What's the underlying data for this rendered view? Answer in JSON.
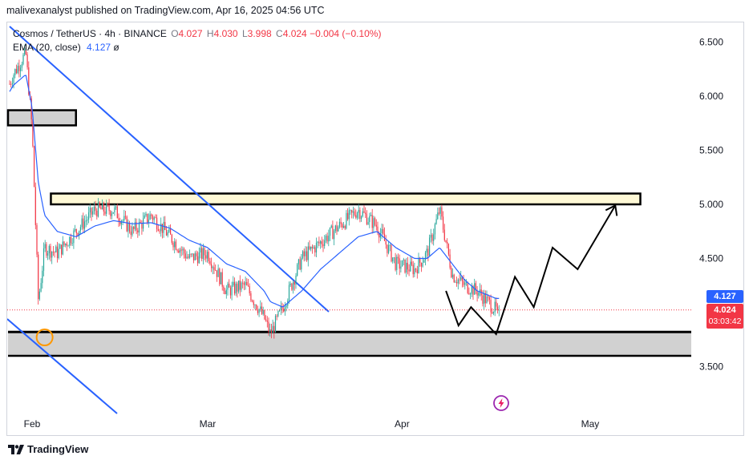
{
  "header": {
    "publisher_line": "malivexanalyst published on TradingView.com, Apr 16, 2025 04:56 UTC"
  },
  "legend": {
    "symbol": "Cosmos / TetherUS · 4h · BINANCE",
    "open_label": "O",
    "open": "4.027",
    "high_label": "H",
    "high": "4.030",
    "low_label": "L",
    "low": "3.998",
    "close_label": "C",
    "close": "4.024",
    "change": "−0.004 (−0.10%)",
    "ema_label": "EMA (20, close)",
    "ema_value": "4.127",
    "ema_extra": "ø"
  },
  "price_tags": {
    "ema": "4.127",
    "last_price": "4.024",
    "countdown": "03:03:42"
  },
  "footer": {
    "brand": "TradingView"
  },
  "colors": {
    "up": "#26a69a",
    "down": "#f23645",
    "ema": "#2962ff",
    "trendline": "#2962ff",
    "zone_fill": "#d1d1d1",
    "resistance_fill": "#fff9d6",
    "projection": "#000000",
    "marker": "#ff9800"
  },
  "chart_data": {
    "type": "line",
    "title": "Cosmos / TetherUS · 4h · BINANCE",
    "yticks": [
      "6.500",
      "6.000",
      "5.500",
      "5.000",
      "4.500",
      "3.500"
    ],
    "ylim": [
      3.05,
      6.75
    ],
    "xticks": [
      "Feb",
      "Mar",
      "Apr",
      "May"
    ],
    "x": [
      "Jan 27",
      "Jan 29",
      "Jan 31",
      "Feb 1",
      "Feb 2",
      "Feb 3",
      "Feb 5",
      "Feb 8",
      "Feb 11",
      "Feb 14",
      "Feb 17",
      "Feb 20",
      "Feb 23",
      "Feb 26",
      "Mar 1",
      "Mar 4",
      "Mar 7",
      "Mar 10",
      "Mar 11",
      "Mar 13",
      "Mar 16",
      "Mar 19",
      "Mar 22",
      "Mar 25",
      "Mar 28",
      "Mar 31",
      "Apr 3",
      "Apr 5",
      "Apr 7",
      "Apr 9",
      "Apr 11",
      "Apr 13",
      "Apr 16"
    ],
    "series": [
      {
        "values": [
          5.9,
          6.2,
          6.4,
          5.7,
          4.1,
          4.6,
          4.55,
          4.75,
          4.95,
          4.95,
          4.75,
          4.9,
          4.7,
          4.5,
          4.55,
          4.2,
          4.25,
          3.95,
          3.8,
          4.05,
          4.5,
          4.65,
          4.8,
          4.95,
          4.8,
          4.45,
          4.4,
          4.55,
          4.95,
          4.35,
          4.25,
          4.2,
          4.02
        ]
      },
      {
        "values": [
          5.9,
          6.1,
          6.2,
          5.9,
          5.2,
          4.9,
          4.75,
          4.7,
          4.8,
          4.85,
          4.82,
          4.83,
          4.78,
          4.67,
          4.6,
          4.45,
          4.38,
          4.2,
          4.1,
          4.05,
          4.2,
          4.4,
          4.55,
          4.7,
          4.75,
          4.6,
          4.5,
          4.5,
          4.6,
          4.45,
          4.3,
          4.2,
          4.13
        ]
      }
    ],
    "zones": [
      {
        "y1": 5.73,
        "y2": 5.87,
        "x_start": "Jan 27",
        "x_end": "Feb 8"
      },
      {
        "y1": 5.0,
        "y2": 5.1,
        "x_start": "Feb 4",
        "x_end": "May 9"
      },
      {
        "y1": 3.6,
        "y2": 3.82,
        "x_start": "Jan 27",
        "x_end": "May 19"
      }
    ],
    "projection": [
      {
        "x": "Apr 8",
        "y": 4.2
      },
      {
        "x": "Apr 10",
        "y": 3.88
      },
      {
        "x": "Apr 12",
        "y": 4.05
      },
      {
        "x": "Apr 16",
        "y": 3.8
      },
      {
        "x": "Apr 19",
        "y": 4.33
      },
      {
        "x": "Apr 22",
        "y": 4.05
      },
      {
        "x": "Apr 25",
        "y": 4.6
      },
      {
        "x": "Apr 29",
        "y": 4.4
      },
      {
        "x": "May 5",
        "y": 4.99
      }
    ]
  }
}
